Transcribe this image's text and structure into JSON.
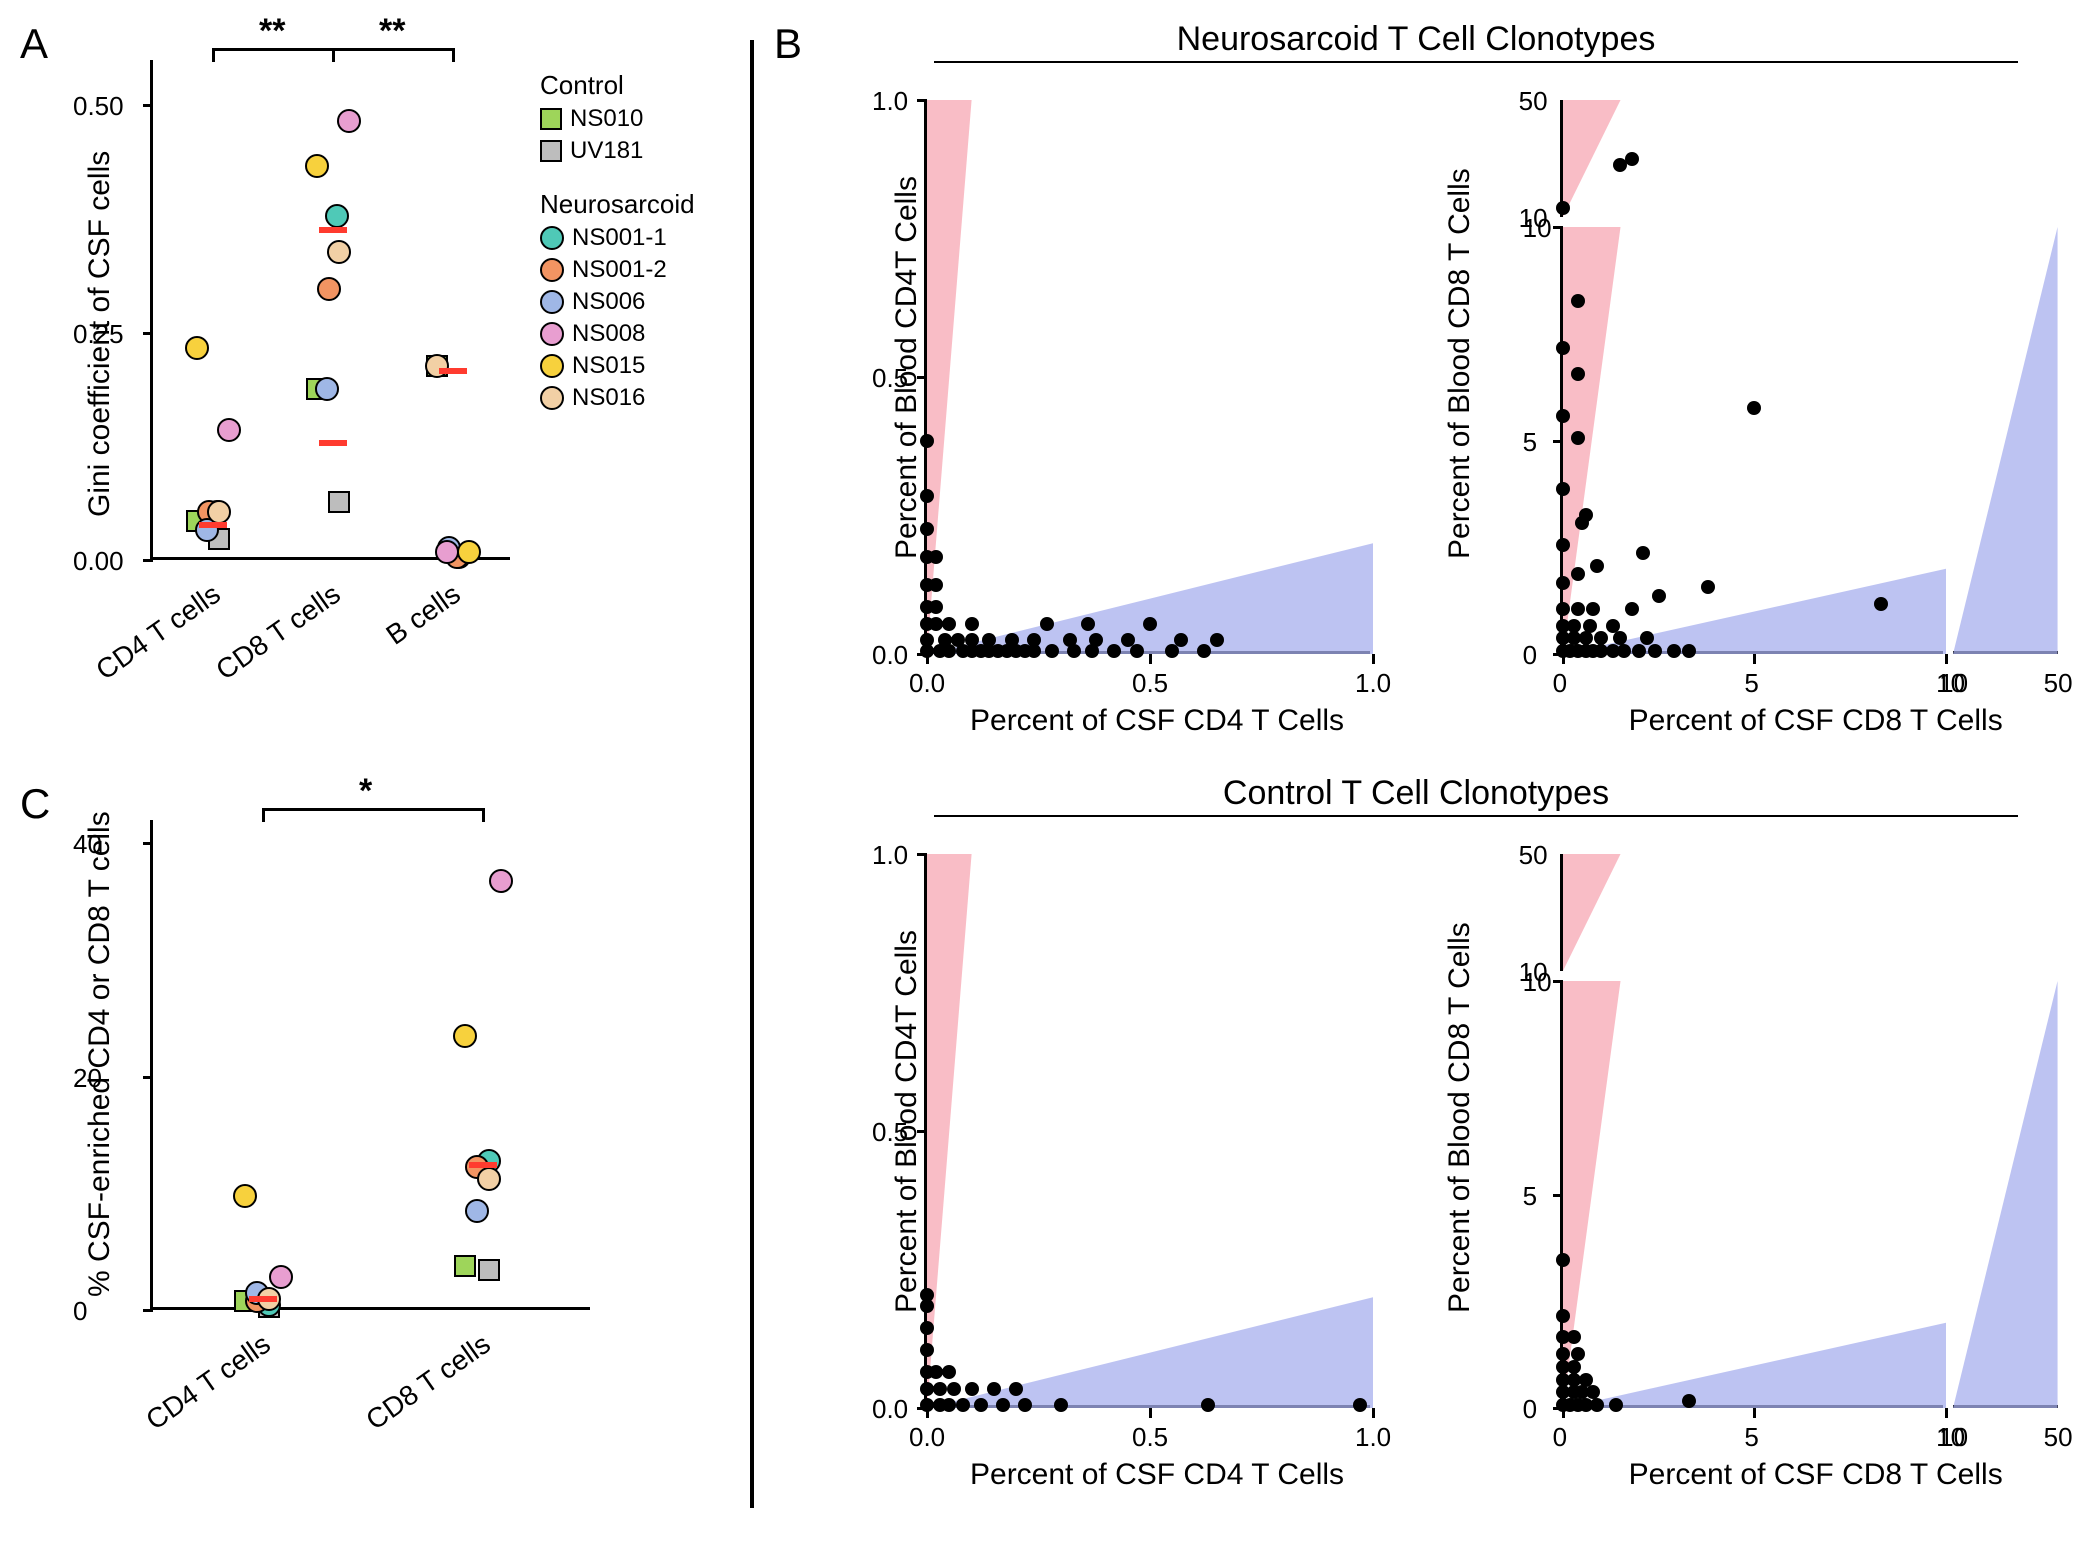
{
  "colors": {
    "NS010": "#9ed55a",
    "UV181": "#bdbdbd",
    "NS001-1": "#4fc9b7",
    "NS001-2": "#f29462",
    "NS006": "#9fb7e6",
    "NS008": "#e89ed0",
    "NS015": "#f7d13d",
    "NS016": "#f2d0a5",
    "median": "#ff3b2f",
    "red_region": "#f7a7b3",
    "blue_region": "#a7afee",
    "dot": "#000000"
  },
  "legend": {
    "control_title": "Control",
    "control_items": [
      {
        "label": "NS010",
        "shape": "square",
        "color": "NS010"
      },
      {
        "label": "UV181",
        "shape": "square",
        "color": "UV181"
      }
    ],
    "ns_title": "Neurosarcoid",
    "ns_items": [
      {
        "label": "NS001-1",
        "shape": "circle",
        "color": "NS001-1"
      },
      {
        "label": "NS001-2",
        "shape": "circle",
        "color": "NS001-2"
      },
      {
        "label": "NS006",
        "shape": "circle",
        "color": "NS006"
      },
      {
        "label": "NS008",
        "shape": "circle",
        "color": "NS008"
      },
      {
        "label": "NS015",
        "shape": "circle",
        "color": "NS015"
      },
      {
        "label": "NS016",
        "shape": "circle",
        "color": "NS016"
      }
    ]
  },
  "panelA": {
    "label": "A",
    "y_title": "Gini coefficient of CSF cells",
    "y_ticks": [
      0.0,
      0.25,
      0.5
    ],
    "categories": [
      "CD4 T cells",
      "CD8 T cells",
      "B cells"
    ],
    "sig": [
      {
        "from": 0,
        "to": 1,
        "label": "**"
      },
      {
        "from": 1,
        "to": 2,
        "label": "**"
      }
    ],
    "points": {
      "CD4 T cells": [
        {
          "id": "NS010",
          "shape": "square",
          "y": 0.04
        },
        {
          "id": "UV181",
          "shape": "square",
          "y": 0.02
        },
        {
          "id": "NS001-1",
          "shape": "circle",
          "y": 0.05
        },
        {
          "id": "NS001-2",
          "shape": "circle",
          "y": 0.05
        },
        {
          "id": "NS006",
          "shape": "circle",
          "y": 0.03
        },
        {
          "id": "NS008",
          "shape": "circle",
          "y": 0.14
        },
        {
          "id": "NS015",
          "shape": "circle",
          "y": 0.23
        },
        {
          "id": "NS016",
          "shape": "circle",
          "y": 0.05
        }
      ],
      "CD8 T cells": [
        {
          "id": "NS010",
          "shape": "square",
          "y": 0.185
        },
        {
          "id": "UV181",
          "shape": "square",
          "y": 0.06
        },
        {
          "id": "NS001-1",
          "shape": "circle",
          "y": 0.375
        },
        {
          "id": "NS001-2",
          "shape": "circle",
          "y": 0.295
        },
        {
          "id": "NS006",
          "shape": "circle",
          "y": 0.185
        },
        {
          "id": "NS008",
          "shape": "circle",
          "y": 0.48
        },
        {
          "id": "NS015",
          "shape": "circle",
          "y": 0.43
        },
        {
          "id": "NS016",
          "shape": "circle",
          "y": 0.335
        }
      ],
      "B cells": [
        {
          "id": "NS010",
          "shape": "square",
          "y": 0.21
        },
        {
          "id": "NS001-1",
          "shape": "circle",
          "y": 0.0
        },
        {
          "id": "NS001-2",
          "shape": "circle",
          "y": 0.0
        },
        {
          "id": "NS006",
          "shape": "circle",
          "y": 0.01
        },
        {
          "id": "NS008",
          "shape": "circle",
          "y": 0.005
        },
        {
          "id": "NS015",
          "shape": "circle",
          "y": 0.005
        },
        {
          "id": "NS016",
          "shape": "circle",
          "y": 0.21
        }
      ]
    },
    "medians": {
      "CD4 T cells": 0.035,
      "CD8 T cells": 0.125,
      "B cells": 0.205,
      "CD8_high": 0.36
    }
  },
  "panelC": {
    "label": "C",
    "y_title": "% CSF-enriched CD4 or CD8 T cells",
    "y_ticks": [
      0,
      20,
      40
    ],
    "categories": [
      "CD4 T cells",
      "CD8 T cells"
    ],
    "sig": [
      {
        "from": 0,
        "to": 1,
        "label": "*"
      }
    ],
    "points": {
      "CD4 T cells": [
        {
          "id": "NS010",
          "shape": "square",
          "y": 0.5
        },
        {
          "id": "UV181",
          "shape": "square",
          "y": 0.0
        },
        {
          "id": "NS001-1",
          "shape": "circle",
          "y": 0.2
        },
        {
          "id": "NS001-2",
          "shape": "circle",
          "y": 0.5
        },
        {
          "id": "NS006",
          "shape": "circle",
          "y": 1.2
        },
        {
          "id": "NS008",
          "shape": "circle",
          "y": 2.6
        },
        {
          "id": "NS015",
          "shape": "circle",
          "y": 9.5
        },
        {
          "id": "NS016",
          "shape": "circle",
          "y": 0.7
        }
      ],
      "CD8 T cells": [
        {
          "id": "NS010",
          "shape": "square",
          "y": 3.5
        },
        {
          "id": "UV181",
          "shape": "square",
          "y": 3.2
        },
        {
          "id": "NS001-1",
          "shape": "circle",
          "y": 12.5
        },
        {
          "id": "NS001-2",
          "shape": "circle",
          "y": 12.0
        },
        {
          "id": "NS006",
          "shape": "circle",
          "y": 8.2
        },
        {
          "id": "NS008",
          "shape": "circle",
          "y": 36.5
        },
        {
          "id": "NS015",
          "shape": "circle",
          "y": 23.2
        },
        {
          "id": "NS016",
          "shape": "circle",
          "y": 11.0
        }
      ]
    },
    "medians": {
      "CD4 T cells": 0.7,
      "CD8 T cells": 12.2
    }
  },
  "panelB": {
    "label": "B",
    "top_title": "Neurosarcoid T Cell Clonotypes",
    "bottom_title": "Control T Cell Clonotypes",
    "cd4": {
      "x_title": "Percent of CSF CD4 T Cells",
      "y_title": "Percent of Blood CD4T Cells",
      "xlim": [
        0,
        1.0
      ],
      "ylim": [
        0,
        1.0
      ],
      "x_ticks": [
        0.0,
        0.5,
        1.0
      ],
      "y_ticks": [
        0.0,
        0.5,
        1.0
      ]
    },
    "cd8": {
      "x_title": "Percent of CSF CD8 T Cells",
      "y_title": "Percent of Blood CD8 T Cells",
      "x_ticks_low": [
        0,
        5,
        10
      ],
      "x_ticks_high": [
        10,
        50
      ],
      "y_ticks_low": [
        0,
        5,
        10
      ],
      "y_ticks_high": [
        10,
        50
      ]
    },
    "ns_cd4_points": [
      [
        0.0,
        0.0
      ],
      [
        0.03,
        0.0
      ],
      [
        0.05,
        0.0
      ],
      [
        0.08,
        0.0
      ],
      [
        0.1,
        0.0
      ],
      [
        0.12,
        0.0
      ],
      [
        0.14,
        0.0
      ],
      [
        0.16,
        0.0
      ],
      [
        0.18,
        0.0
      ],
      [
        0.2,
        0.0
      ],
      [
        0.22,
        0.0
      ],
      [
        0.24,
        0.0
      ],
      [
        0.28,
        0.0
      ],
      [
        0.33,
        0.0
      ],
      [
        0.37,
        0.0
      ],
      [
        0.42,
        0.0
      ],
      [
        0.47,
        0.0
      ],
      [
        0.55,
        0.0
      ],
      [
        0.62,
        0.0
      ],
      [
        0.0,
        0.02
      ],
      [
        0.04,
        0.02
      ],
      [
        0.07,
        0.02
      ],
      [
        0.1,
        0.02
      ],
      [
        0.14,
        0.02
      ],
      [
        0.19,
        0.02
      ],
      [
        0.24,
        0.02
      ],
      [
        0.32,
        0.02
      ],
      [
        0.38,
        0.02
      ],
      [
        0.45,
        0.02
      ],
      [
        0.57,
        0.02
      ],
      [
        0.65,
        0.02
      ],
      [
        0.0,
        0.05
      ],
      [
        0.02,
        0.05
      ],
      [
        0.05,
        0.05
      ],
      [
        0.1,
        0.05
      ],
      [
        0.27,
        0.05
      ],
      [
        0.36,
        0.05
      ],
      [
        0.5,
        0.05
      ],
      [
        0.0,
        0.08
      ],
      [
        0.02,
        0.08
      ],
      [
        0.0,
        0.12
      ],
      [
        0.02,
        0.12
      ],
      [
        0.0,
        0.17
      ],
      [
        0.02,
        0.17
      ],
      [
        0.0,
        0.22
      ],
      [
        0.0,
        0.28
      ],
      [
        0.0,
        0.38
      ]
    ],
    "ns_cd8_points_low": [
      [
        0.0,
        0.0
      ],
      [
        0.2,
        0.0
      ],
      [
        0.4,
        0.0
      ],
      [
        0.6,
        0.0
      ],
      [
        0.8,
        0.0
      ],
      [
        1.0,
        0.0
      ],
      [
        1.3,
        0.0
      ],
      [
        1.6,
        0.0
      ],
      [
        2.0,
        0.0
      ],
      [
        2.4,
        0.0
      ],
      [
        2.9,
        0.0
      ],
      [
        3.3,
        0.0
      ],
      [
        0.0,
        0.3
      ],
      [
        0.3,
        0.3
      ],
      [
        0.6,
        0.3
      ],
      [
        1.0,
        0.3
      ],
      [
        1.5,
        0.3
      ],
      [
        2.2,
        0.3
      ],
      [
        0.0,
        0.6
      ],
      [
        0.3,
        0.6
      ],
      [
        0.7,
        0.6
      ],
      [
        1.3,
        0.6
      ],
      [
        0.0,
        1.0
      ],
      [
        0.4,
        1.0
      ],
      [
        0.8,
        1.0
      ],
      [
        1.8,
        1.0
      ],
      [
        2.5,
        1.3
      ],
      [
        3.8,
        1.5
      ],
      [
        0.0,
        1.6
      ],
      [
        0.4,
        1.8
      ],
      [
        0.9,
        2.0
      ],
      [
        2.1,
        2.3
      ],
      [
        0.0,
        2.5
      ],
      [
        0.5,
        3.0
      ],
      [
        0.6,
        3.2
      ],
      [
        0.0,
        3.8
      ],
      [
        5.0,
        5.7
      ],
      [
        0.4,
        5.0
      ],
      [
        0.0,
        5.5
      ],
      [
        0.4,
        6.5
      ],
      [
        0.0,
        7.1
      ],
      [
        0.4,
        8.2
      ],
      [
        8.3,
        1.1
      ]
    ],
    "ns_cd8_points_high": [
      [
        0.0,
        13.0
      ],
      [
        1.5,
        28.0
      ],
      [
        1.8,
        30.0
      ]
    ],
    "ctrl_cd4_points": [
      [
        0.0,
        0.0
      ],
      [
        0.03,
        0.0
      ],
      [
        0.05,
        0.0
      ],
      [
        0.08,
        0.0
      ],
      [
        0.12,
        0.0
      ],
      [
        0.17,
        0.0
      ],
      [
        0.22,
        0.0
      ],
      [
        0.3,
        0.0
      ],
      [
        0.63,
        0.0
      ],
      [
        0.97,
        0.0
      ],
      [
        0.0,
        0.03
      ],
      [
        0.03,
        0.03
      ],
      [
        0.06,
        0.03
      ],
      [
        0.1,
        0.03
      ],
      [
        0.15,
        0.03
      ],
      [
        0.2,
        0.03
      ],
      [
        0.0,
        0.06
      ],
      [
        0.02,
        0.06
      ],
      [
        0.05,
        0.06
      ],
      [
        0.0,
        0.1
      ],
      [
        0.0,
        0.14
      ],
      [
        0.0,
        0.18
      ],
      [
        0.0,
        0.2
      ]
    ],
    "ctrl_cd8_points_low": [
      [
        0.0,
        0.0
      ],
      [
        0.2,
        0.0
      ],
      [
        0.4,
        0.0
      ],
      [
        0.6,
        0.0
      ],
      [
        0.9,
        0.0
      ],
      [
        1.4,
        0.0
      ],
      [
        3.3,
        0.1
      ],
      [
        0.0,
        0.3
      ],
      [
        0.3,
        0.3
      ],
      [
        0.5,
        0.3
      ],
      [
        0.8,
        0.3
      ],
      [
        0.0,
        0.6
      ],
      [
        0.3,
        0.6
      ],
      [
        0.6,
        0.6
      ],
      [
        0.0,
        0.9
      ],
      [
        0.3,
        0.9
      ],
      [
        0.0,
        1.2
      ],
      [
        0.4,
        1.2
      ],
      [
        0.0,
        1.6
      ],
      [
        0.3,
        1.6
      ],
      [
        0.0,
        2.1
      ],
      [
        0.0,
        3.4
      ]
    ]
  }
}
